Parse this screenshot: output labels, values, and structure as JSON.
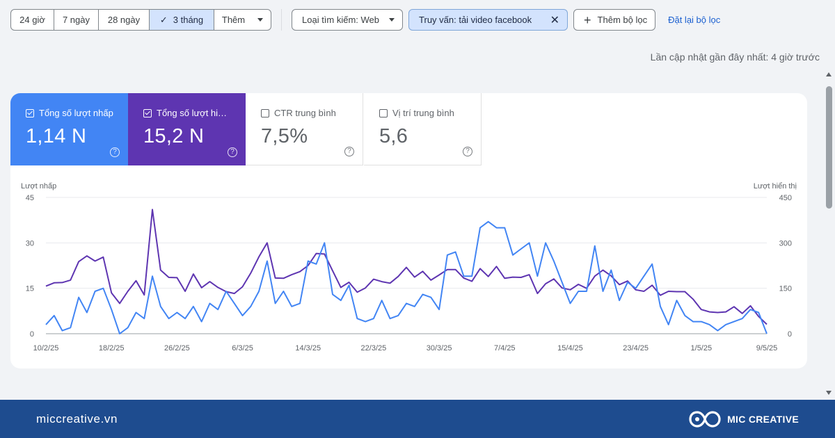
{
  "filters": {
    "date_ranges": [
      {
        "label": "24 giờ",
        "active": false
      },
      {
        "label": "7 ngày",
        "active": false
      },
      {
        "label": "28 ngày",
        "active": false
      },
      {
        "label": "3 tháng",
        "active": true
      },
      {
        "label": "Thêm",
        "active": false
      }
    ],
    "search_type": "Loại tìm kiếm: Web",
    "query_chip": "Truy vấn: tải video facebook",
    "add_filter": "Thêm bộ lọc",
    "reset": "Đặt lại bộ lọc"
  },
  "last_updated": "Lần cập nhật gần đây nhất: 4 giờ trước",
  "metrics": [
    {
      "label": "Tổng số lượt nhấp",
      "value": "1,14 N",
      "checked": true,
      "color": "#4285f4"
    },
    {
      "label": "Tổng số lượt hiển thị",
      "value": "15,2 N",
      "checked": true,
      "color": "#5e35b1"
    },
    {
      "label": "CTR trung bình",
      "value": "7,5%",
      "checked": false
    },
    {
      "label": "Vị trí trung bình",
      "value": "5,6",
      "checked": false
    }
  ],
  "chart_data": {
    "type": "line",
    "left_axis_label": "Lượt nhấp",
    "right_axis_label": "Lượt hiển thị",
    "left_ticks": [
      "45",
      "30",
      "15",
      "0"
    ],
    "right_ticks": [
      "450",
      "300",
      "150",
      "0"
    ],
    "ylim_left": [
      0,
      45
    ],
    "ylim_right": [
      0,
      450
    ],
    "x_tick_labels": [
      "10/2/25",
      "18/2/25",
      "26/2/25",
      "6/3/25",
      "14/3/25",
      "22/3/25",
      "30/3/25",
      "7/4/25",
      "15/4/25",
      "23/4/25",
      "1/5/25",
      "9/5/25"
    ],
    "x_range": [
      "10/2/25",
      "9/5/25"
    ],
    "grid": true,
    "series": [
      {
        "name": "Tổng số lượt nhấp",
        "axis": "left",
        "color": "#4285f4",
        "values": [
          3,
          6,
          1,
          2,
          12,
          7,
          14,
          15,
          8,
          0,
          2,
          7,
          5,
          19,
          9,
          5,
          7,
          5,
          9,
          4,
          10,
          8,
          14,
          10,
          6,
          9,
          14,
          24,
          10,
          14,
          9,
          10,
          24,
          23,
          30,
          13,
          11,
          16,
          5,
          4,
          5,
          11,
          5,
          6,
          10,
          9,
          13,
          12,
          8,
          26,
          27,
          19,
          19,
          35,
          37,
          35,
          35,
          26,
          28,
          30,
          19,
          30,
          24,
          17,
          10,
          14,
          14,
          29,
          14,
          21,
          11,
          17,
          15,
          19,
          23,
          9,
          3,
          11,
          6,
          4,
          4,
          3,
          1,
          3,
          4,
          5,
          8,
          7,
          0
        ]
      },
      {
        "name": "Tổng số lượt hiển thị",
        "axis": "right",
        "color": "#5e35b1",
        "values": [
          157,
          168,
          169,
          177,
          238,
          257,
          240,
          253,
          135,
          100,
          140,
          175,
          128,
          410,
          210,
          186,
          185,
          140,
          197,
          152,
          172,
          153,
          139,
          133,
          155,
          200,
          254,
          300,
          184,
          183,
          195,
          205,
          225,
          265,
          263,
          208,
          153,
          170,
          137,
          151,
          180,
          172,
          167,
          189,
          219,
          187,
          206,
          177,
          194,
          212,
          212,
          184,
          173,
          215,
          189,
          222,
          183,
          187,
          186,
          195,
          133,
          165,
          181,
          151,
          145,
          163,
          150,
          190,
          210,
          191,
          162,
          174,
          145,
          140,
          160,
          127,
          140,
          139,
          139,
          114,
          80,
          72,
          70,
          72,
          89,
          67,
          92,
          57,
          31
        ]
      }
    ]
  },
  "footer": {
    "site": "miccreative.vn",
    "brand": "MIC CREATIVE"
  }
}
